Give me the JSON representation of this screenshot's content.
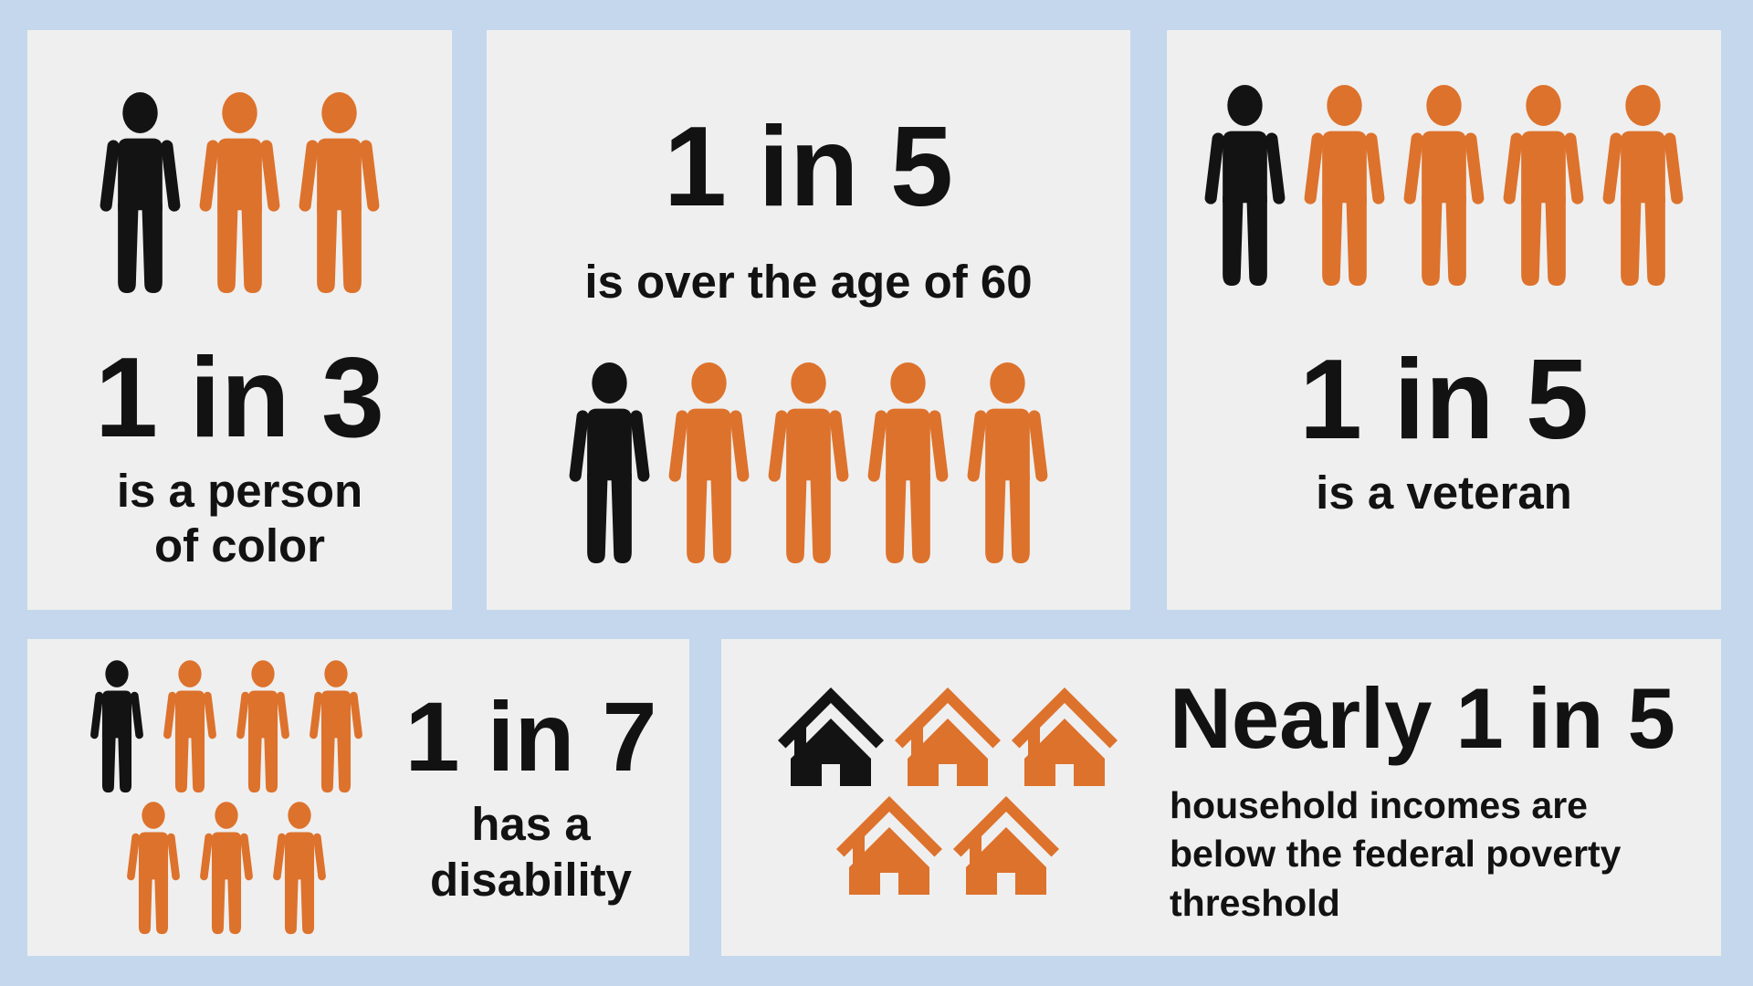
{
  "title": "Population statistics infographic",
  "colors": {
    "background": "#C4D7EC",
    "panel": "#EFEFEF",
    "orange": "#DD722C",
    "black": "#131313",
    "text": "#121212"
  },
  "panels": [
    {
      "name": "person-of-color",
      "stat": "1 in 3",
      "label_lines": [
        "is a person",
        "of color"
      ],
      "icon": "person",
      "rows": [
        {
          "icons": [
            "black",
            "orange",
            "orange"
          ]
        }
      ]
    },
    {
      "name": "over-age-60",
      "stat": "1 in 5",
      "label_lines": [
        "is over the age of 60"
      ],
      "icon": "person",
      "rows": [
        {
          "icons": [
            "black",
            "orange",
            "orange",
            "orange",
            "orange"
          ]
        }
      ]
    },
    {
      "name": "veteran",
      "stat": "1 in 5",
      "label_lines": [
        "is a veteran"
      ],
      "icon": "person",
      "rows": [
        {
          "icons": [
            "black",
            "orange",
            "orange",
            "orange",
            "orange"
          ]
        }
      ]
    },
    {
      "name": "disability",
      "stat": "1 in 7",
      "label_lines": [
        "has a",
        "disability"
      ],
      "icon": "person",
      "rows": [
        {
          "icons": [
            "black",
            "orange",
            "orange",
            "orange"
          ]
        },
        {
          "icons": [
            "orange",
            "orange",
            "orange"
          ]
        }
      ]
    },
    {
      "name": "poverty",
      "stat": "Nearly 1 in 5",
      "label_lines": [
        "household incomes are",
        "below the federal poverty",
        "threshold"
      ],
      "icon": "house",
      "rows": [
        {
          "icons": [
            "black",
            "orange",
            "orange"
          ]
        },
        {
          "icons": [
            "orange",
            "orange"
          ]
        }
      ]
    }
  ],
  "chart_data": [
    {
      "type": "pictogram",
      "title": "1 in 3",
      "description": "is a person of color",
      "icon": "person",
      "total": 3,
      "highlighted": 1,
      "fraction": 0.333,
      "highlight_color": "#131313",
      "base_color": "#DD722C"
    },
    {
      "type": "pictogram",
      "title": "1 in 5",
      "description": "is over the age of 60",
      "icon": "person",
      "total": 5,
      "highlighted": 1,
      "fraction": 0.2,
      "highlight_color": "#131313",
      "base_color": "#DD722C"
    },
    {
      "type": "pictogram",
      "title": "1 in 5",
      "description": "is a veteran",
      "icon": "person",
      "total": 5,
      "highlighted": 1,
      "fraction": 0.2,
      "highlight_color": "#131313",
      "base_color": "#DD722C"
    },
    {
      "type": "pictogram",
      "title": "1 in 7",
      "description": "has a disability",
      "icon": "person",
      "total": 7,
      "highlighted": 1,
      "fraction": 0.143,
      "highlight_color": "#131313",
      "base_color": "#DD722C"
    },
    {
      "type": "pictogram",
      "title": "Nearly 1 in 5",
      "description": "household incomes are below the federal poverty threshold",
      "icon": "house",
      "total": 5,
      "highlighted": 1,
      "fraction": 0.19,
      "highlight_color": "#131313",
      "base_color": "#DD722C"
    }
  ]
}
